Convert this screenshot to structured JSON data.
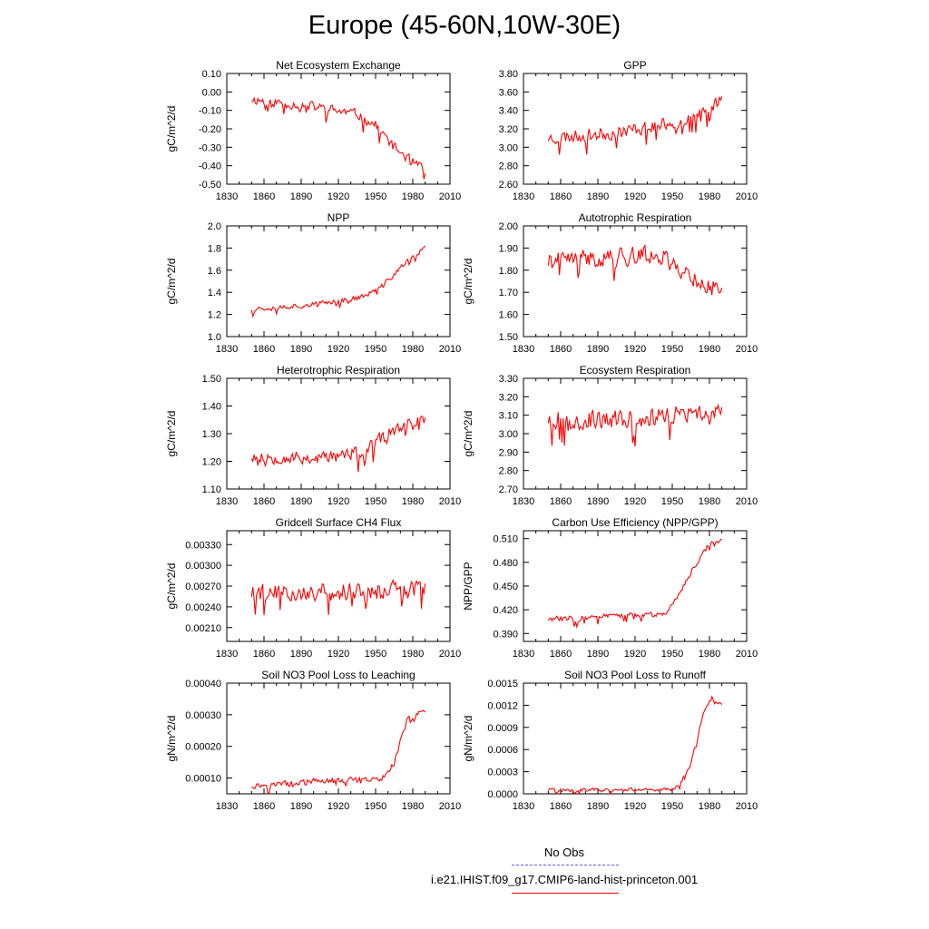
{
  "title": "Europe (45-60N,10W-30E)",
  "legend": [
    {
      "label": "No Obs",
      "color": "#5a5aff",
      "style": "dashed"
    },
    {
      "label": "i.e21.IHIST.f09_g17.CMIP6-land-hist-princeton.001",
      "color": "#ff0000",
      "style": "solid"
    }
  ],
  "chart_data": [
    {
      "type": "line",
      "title": "Net Ecosystem Exchange",
      "ylabel": "gC/m^2/d",
      "xlim": [
        1830,
        2010
      ],
      "ylim": [
        -0.5,
        0.1
      ],
      "xticks": [
        "1830",
        "1860",
        "1890",
        "1920",
        "1950",
        "1980",
        "2010"
      ],
      "yticks": [
        "0.10",
        "0.00",
        "-0.10",
        "-0.20",
        "-0.30",
        "-0.40",
        "-0.50"
      ],
      "x_start": 1850,
      "x_end": 1990,
      "trend": [
        [
          1850,
          -0.04
        ],
        [
          1900,
          -0.08
        ],
        [
          1935,
          -0.12
        ],
        [
          1950,
          -0.18
        ],
        [
          1965,
          -0.3
        ],
        [
          1980,
          -0.38
        ],
        [
          1990,
          -0.43
        ]
      ],
      "noise": 0.045,
      "seed": 11,
      "color": "#ff0000"
    },
    {
      "type": "line",
      "title": "GPP",
      "ylabel": "",
      "xlim": [
        1830,
        2010
      ],
      "ylim": [
        2.6,
        3.8
      ],
      "xticks": [
        "1830",
        "1860",
        "1890",
        "1920",
        "1950",
        "1980",
        "2010"
      ],
      "yticks": [
        "3.80",
        "3.60",
        "3.40",
        "3.20",
        "3.00",
        "2.80",
        "2.60"
      ],
      "x_start": 1850,
      "x_end": 1990,
      "trend": [
        [
          1850,
          3.1
        ],
        [
          1900,
          3.15
        ],
        [
          1930,
          3.22
        ],
        [
          1960,
          3.3
        ],
        [
          1980,
          3.4
        ],
        [
          1990,
          3.55
        ]
      ],
      "noise": 0.12,
      "seed": 23,
      "color": "#ff0000"
    },
    {
      "type": "line",
      "title": "NPP",
      "ylabel": "gC/m^2/d",
      "xlim": [
        1830,
        2010
      ],
      "ylim": [
        1.0,
        2.0
      ],
      "xticks": [
        "1830",
        "1860",
        "1890",
        "1920",
        "1950",
        "1980",
        "2010"
      ],
      "yticks": [
        "2.0",
        "1.8",
        "1.6",
        "1.4",
        "1.2",
        "1.0"
      ],
      "x_start": 1850,
      "x_end": 1990,
      "trend": [
        [
          1850,
          1.25
        ],
        [
          1900,
          1.29
        ],
        [
          1940,
          1.36
        ],
        [
          1955,
          1.45
        ],
        [
          1970,
          1.62
        ],
        [
          1980,
          1.72
        ],
        [
          1990,
          1.8
        ]
      ],
      "noise": 0.04,
      "seed": 37,
      "color": "#ff0000"
    },
    {
      "type": "line",
      "title": "Autotrophic Respiration",
      "ylabel": "gC/m^2/d",
      "xlim": [
        1830,
        2010
      ],
      "ylim": [
        1.5,
        2.0
      ],
      "xticks": [
        "1830",
        "1860",
        "1890",
        "1920",
        "1950",
        "1980",
        "2010"
      ],
      "yticks": [
        "2.00",
        "1.90",
        "1.80",
        "1.70",
        "1.60",
        "1.50"
      ],
      "x_start": 1850,
      "x_end": 1990,
      "trend": [
        [
          1850,
          1.84
        ],
        [
          1900,
          1.86
        ],
        [
          1940,
          1.87
        ],
        [
          1960,
          1.79
        ],
        [
          1980,
          1.72
        ],
        [
          1990,
          1.72
        ]
      ],
      "noise": 0.07,
      "seed": 41,
      "color": "#ff0000"
    },
    {
      "type": "line",
      "title": "Heterotrophic Respiration",
      "ylabel": "gC/m^2/d",
      "xlim": [
        1830,
        2010
      ],
      "ylim": [
        1.1,
        1.5
      ],
      "xticks": [
        "1830",
        "1860",
        "1890",
        "1920",
        "1950",
        "1980",
        "2010"
      ],
      "yticks": [
        "1.50",
        "1.40",
        "1.30",
        "1.20",
        "1.10"
      ],
      "x_start": 1850,
      "x_end": 1990,
      "trend": [
        [
          1850,
          1.22
        ],
        [
          1900,
          1.21
        ],
        [
          1940,
          1.23
        ],
        [
          1960,
          1.3
        ],
        [
          1980,
          1.34
        ],
        [
          1990,
          1.36
        ]
      ],
      "noise": 0.04,
      "seed": 53,
      "color": "#ff0000"
    },
    {
      "type": "line",
      "title": "Ecosystem Respiration",
      "ylabel": "gC/m^2/d",
      "xlim": [
        1830,
        2010
      ],
      "ylim": [
        2.7,
        3.3
      ],
      "xticks": [
        "1830",
        "1860",
        "1890",
        "1920",
        "1950",
        "1980",
        "2010"
      ],
      "yticks": [
        "3.30",
        "3.20",
        "3.10",
        "3.00",
        "2.90",
        "2.80",
        "2.70"
      ],
      "x_start": 1850,
      "x_end": 1990,
      "trend": [
        [
          1850,
          3.08
        ],
        [
          1900,
          3.07
        ],
        [
          1950,
          3.1
        ],
        [
          1990,
          3.1
        ]
      ],
      "noise": 0.09,
      "seed": 67,
      "color": "#ff0000"
    },
    {
      "type": "line",
      "title": "Gridcell Surface CH4 Flux",
      "ylabel": "gC/m^2/d",
      "xlim": [
        1830,
        2010
      ],
      "ylim": [
        0.0019,
        0.0035
      ],
      "xticks": [
        "1830",
        "1860",
        "1890",
        "1920",
        "1950",
        "1980",
        "2010"
      ],
      "yticks": [
        "0.00330",
        "0.00300",
        "0.00270",
        "0.00240",
        "0.00210"
      ],
      "x_start": 1850,
      "x_end": 1990,
      "trend": [
        [
          1850,
          0.0026
        ],
        [
          1920,
          0.00262
        ],
        [
          1990,
          0.00265
        ]
      ],
      "noise": 0.00022,
      "seed": 79,
      "color": "#ff0000"
    },
    {
      "type": "line",
      "title": "Carbon Use Efficiency (NPP/GPP)",
      "ylabel": "NPP/GPP",
      "xlim": [
        1830,
        2010
      ],
      "ylim": [
        0.38,
        0.52
      ],
      "xticks": [
        "1830",
        "1860",
        "1890",
        "1920",
        "1950",
        "1980",
        "2010"
      ],
      "yticks": [
        "0.510",
        "0.480",
        "0.450",
        "0.420",
        "0.390"
      ],
      "x_start": 1850,
      "x_end": 1990,
      "trend": [
        [
          1850,
          0.408
        ],
        [
          1900,
          0.412
        ],
        [
          1945,
          0.415
        ],
        [
          1955,
          0.44
        ],
        [
          1970,
          0.48
        ],
        [
          1980,
          0.505
        ],
        [
          1990,
          0.508
        ]
      ],
      "noise": 0.006,
      "seed": 83,
      "color": "#ff0000"
    },
    {
      "type": "line",
      "title": "Soil NO3 Pool Loss to Leaching",
      "ylabel": "gN/m^2/d",
      "xlim": [
        1830,
        2010
      ],
      "ylim": [
        5e-05,
        0.0004
      ],
      "xticks": [
        "1830",
        "1860",
        "1890",
        "1920",
        "1950",
        "1980",
        "2010"
      ],
      "yticks": [
        "0.00040",
        "0.00030",
        "0.00020",
        "0.00010"
      ],
      "x_start": 1850,
      "x_end": 1990,
      "trend": [
        [
          1850,
          7.5e-05
        ],
        [
          1900,
          9e-05
        ],
        [
          1955,
          9.5e-05
        ],
        [
          1965,
          0.00015
        ],
        [
          1975,
          0.00028
        ],
        [
          1990,
          0.00032
        ]
      ],
      "noise": 1.5e-05,
      "seed": 97,
      "color": "#ff0000"
    },
    {
      "type": "line",
      "title": "Soil NO3 Pool Loss to Runoff",
      "ylabel": "gN/m^2/d",
      "xlim": [
        1830,
        2010
      ],
      "ylim": [
        0.0,
        0.0015
      ],
      "xticks": [
        "1830",
        "1860",
        "1890",
        "1920",
        "1950",
        "1980",
        "2010"
      ],
      "yticks": [
        "0.0015",
        "0.0012",
        "0.0009",
        "0.0006",
        "0.0003",
        "0.0000"
      ],
      "x_start": 1850,
      "x_end": 1990,
      "trend": [
        [
          1850,
          5e-05
        ],
        [
          1945,
          6e-05
        ],
        [
          1955,
          0.0001
        ],
        [
          1965,
          0.0004
        ],
        [
          1975,
          0.0011
        ],
        [
          1982,
          0.0013
        ],
        [
          1990,
          0.0012
        ]
      ],
      "noise": 4e-05,
      "seed": 101,
      "color": "#ff0000"
    }
  ]
}
